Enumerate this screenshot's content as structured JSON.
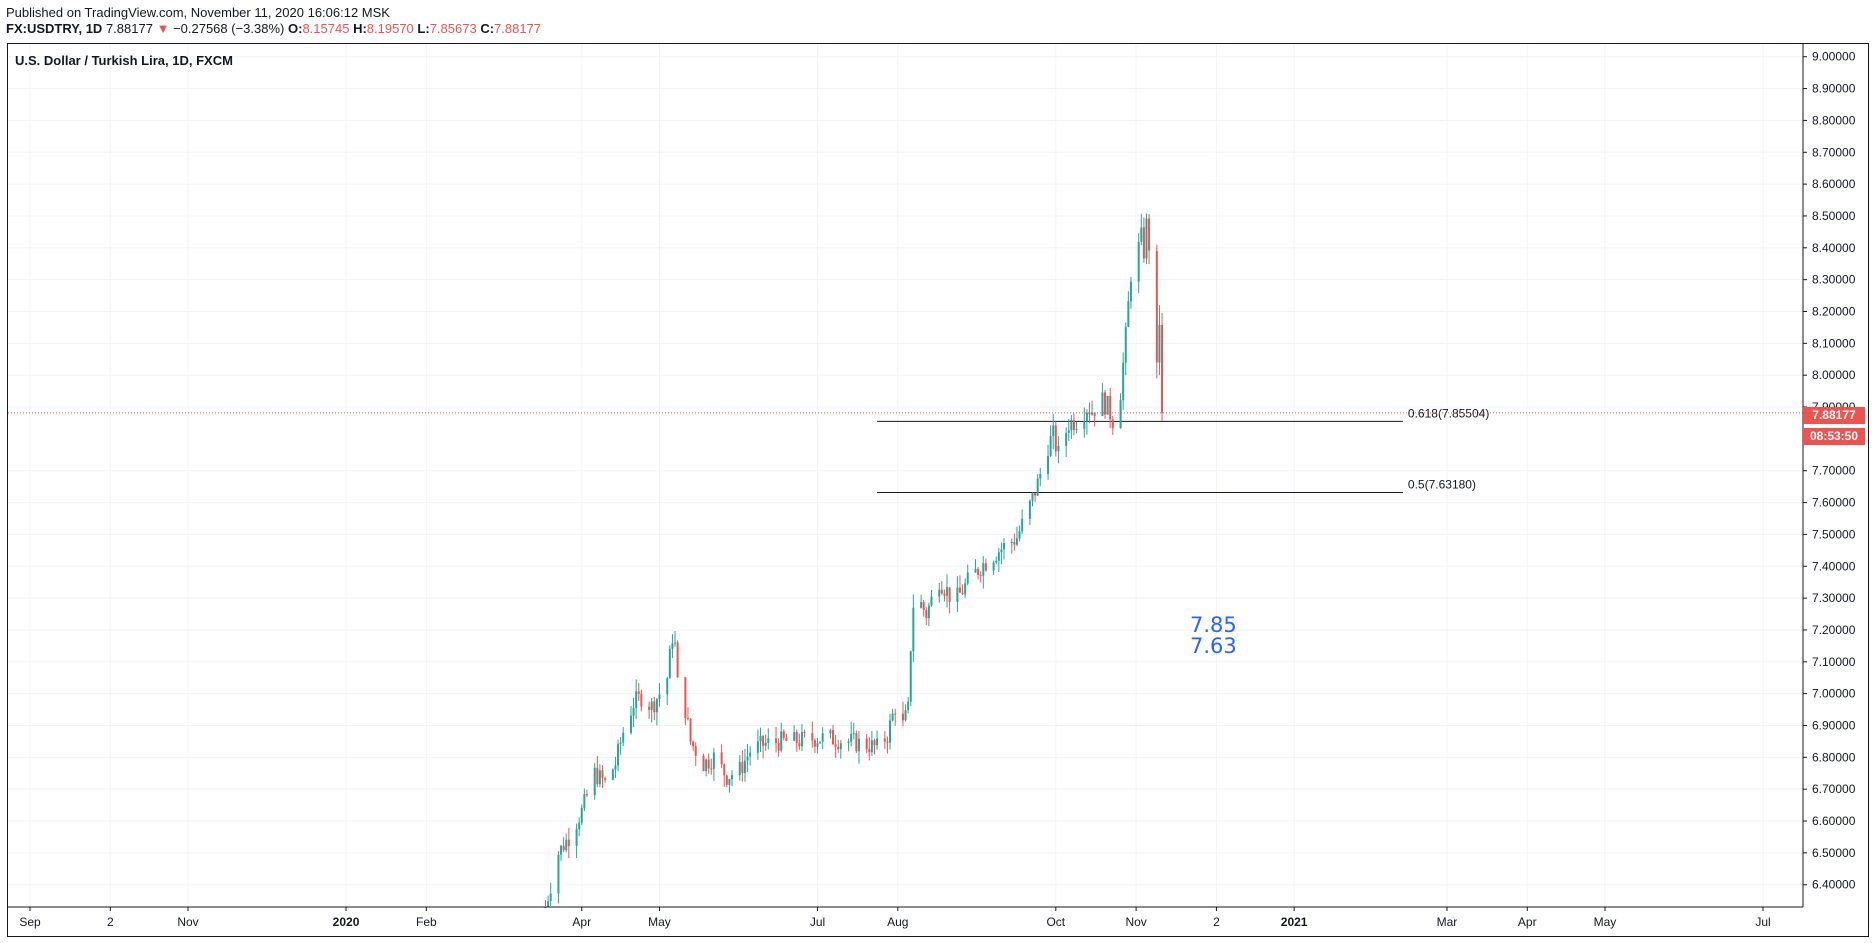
{
  "header": {
    "published": "Published on TradingView.com, November 11, 2020 16:06:12 MSK",
    "symbol": "FX:USDTRY, 1D",
    "last": "7.88177",
    "change_arrow": "▼",
    "change": "−0.27568 (−3.38%)",
    "o_label": "O:",
    "o_value": "8.15745",
    "h_label": "H:",
    "h_value": "8.19570",
    "l_label": "L:",
    "l_value": "7.85673",
    "c_label": "C:",
    "c_value": "7.88177"
  },
  "chart_title": "U.S. Dollar / Turkish Lira, 1D, FXCM",
  "price_tags": {
    "last_price": "7.88177",
    "countdown": "08:53:50"
  },
  "note_lines": [
    "7.85",
    "7.63"
  ],
  "colors": {
    "up": "#26a69a",
    "down": "#ef5350",
    "note": "#2962ff",
    "grid": "#f0f3fa"
  },
  "chart_data": {
    "type": "candlestick",
    "title": "U.S. Dollar / Turkish Lira, 1D, FXCM",
    "ylim": [
      6.33,
      9.04
    ],
    "y_ticks": [
      "9.00000",
      "8.90000",
      "8.80000",
      "8.70000",
      "8.60000",
      "8.50000",
      "8.40000",
      "8.30000",
      "8.20000",
      "8.10000",
      "8.00000",
      "7.90000",
      "7.70000",
      "7.60000",
      "7.50000",
      "7.40000",
      "7.30000",
      "7.20000",
      "7.10000",
      "7.00000",
      "6.90000",
      "6.80000",
      "6.70000",
      "6.60000",
      "6.50000",
      "6.40000"
    ],
    "x_ticks": [
      {
        "label": "Sep",
        "date": "2019-09-01",
        "bold": false
      },
      {
        "label": "2",
        "date": "2019-10-02",
        "bold": false
      },
      {
        "label": "Nov",
        "date": "2019-11-01",
        "bold": false
      },
      {
        "label": "2020",
        "date": "2020-01-01",
        "bold": true
      },
      {
        "label": "Feb",
        "date": "2020-02-01",
        "bold": false
      },
      {
        "label": "Apr",
        "date": "2020-04-01",
        "bold": false
      },
      {
        "label": "May",
        "date": "2020-05-01",
        "bold": false
      },
      {
        "label": "Jul",
        "date": "2020-07-01",
        "bold": false
      },
      {
        "label": "Aug",
        "date": "2020-08-01",
        "bold": false
      },
      {
        "label": "Oct",
        "date": "2020-10-01",
        "bold": false
      },
      {
        "label": "Nov",
        "date": "2020-11-01",
        "bold": false
      },
      {
        "label": "2",
        "date": "2020-12-02",
        "bold": false
      },
      {
        "label": "2021",
        "date": "2021-01-01",
        "bold": true
      },
      {
        "label": "Mar",
        "date": "2021-03-01",
        "bold": false
      },
      {
        "label": "Apr",
        "date": "2021-04-01",
        "bold": false
      },
      {
        "label": "May",
        "date": "2021-05-01",
        "bold": false
      },
      {
        "label": "Jul",
        "date": "2021-07-01",
        "bold": false
      }
    ],
    "fib_levels": [
      {
        "label": "0.618(7.85504)",
        "value": 7.85504,
        "from": "2020-07-24",
        "to": "2021-02-12"
      },
      {
        "label": "0.5(7.63180)",
        "value": 7.6318,
        "from": "2020-07-24",
        "to": "2021-02-12"
      }
    ],
    "last_price": 7.88177,
    "anchors": [
      [
        "2020-03-18",
        6.33
      ],
      [
        "2020-03-23",
        6.5
      ],
      [
        "2020-03-27",
        6.55
      ],
      [
        "2020-04-01",
        6.63
      ],
      [
        "2020-04-06",
        6.75
      ],
      [
        "2020-04-10",
        6.72
      ],
      [
        "2020-04-14",
        6.78
      ],
      [
        "2020-04-17",
        6.88
      ],
      [
        "2020-04-21",
        6.97
      ],
      [
        "2020-04-24",
        6.99
      ],
      [
        "2020-04-28",
        6.96
      ],
      [
        "2020-05-01",
        7.0
      ],
      [
        "2020-05-04",
        7.05
      ],
      [
        "2020-05-06",
        7.18
      ],
      [
        "2020-05-07",
        7.15
      ],
      [
        "2020-05-08",
        7.03
      ],
      [
        "2020-05-11",
        6.95
      ],
      [
        "2020-05-13",
        6.85
      ],
      [
        "2020-05-18",
        6.78
      ],
      [
        "2020-05-22",
        6.8
      ],
      [
        "2020-05-27",
        6.74
      ],
      [
        "2020-06-01",
        6.76
      ],
      [
        "2020-06-05",
        6.82
      ],
      [
        "2020-06-10",
        6.84
      ],
      [
        "2020-06-16",
        6.85
      ],
      [
        "2020-06-22",
        6.85
      ],
      [
        "2020-06-30",
        6.86
      ],
      [
        "2020-07-06",
        6.86
      ],
      [
        "2020-07-13",
        6.85
      ],
      [
        "2020-07-20",
        6.84
      ],
      [
        "2020-07-24",
        6.83
      ],
      [
        "2020-07-28",
        6.87
      ],
      [
        "2020-07-31",
        6.96
      ],
      [
        "2020-08-03",
        6.9
      ],
      [
        "2020-08-05",
        6.95
      ],
      [
        "2020-08-06",
        7.15
      ],
      [
        "2020-08-07",
        7.28
      ],
      [
        "2020-08-10",
        7.28
      ],
      [
        "2020-08-12",
        7.25
      ],
      [
        "2020-08-17",
        7.36
      ],
      [
        "2020-08-21",
        7.31
      ],
      [
        "2020-08-24",
        7.3
      ],
      [
        "2020-08-28",
        7.35
      ],
      [
        "2020-09-02",
        7.4
      ],
      [
        "2020-09-09",
        7.45
      ],
      [
        "2020-09-16",
        7.49
      ],
      [
        "2020-09-21",
        7.59
      ],
      [
        "2020-09-24",
        7.66
      ],
      [
        "2020-09-28",
        7.78
      ],
      [
        "2020-09-30",
        7.81
      ],
      [
        "2020-10-02",
        7.75
      ],
      [
        "2020-10-06",
        7.85
      ],
      [
        "2020-10-09",
        7.86
      ],
      [
        "2020-10-13",
        7.9
      ],
      [
        "2020-10-15",
        7.89
      ],
      [
        "2020-10-19",
        7.92
      ],
      [
        "2020-10-21",
        7.9
      ],
      [
        "2020-10-23",
        7.86
      ],
      [
        "2020-10-26",
        7.95
      ],
      [
        "2020-10-28",
        8.12
      ],
      [
        "2020-10-30",
        8.32
      ],
      [
        "2020-11-02",
        8.4
      ],
      [
        "2020-11-03",
        8.43
      ],
      [
        "2020-11-04",
        8.39
      ],
      [
        "2020-11-05",
        8.47
      ],
      [
        "2020-11-06",
        8.41
      ]
    ],
    "last_candles": [
      {
        "date": "2020-11-09",
        "open": 8.39,
        "high": 8.41,
        "low": 7.99,
        "close": 8.04
      },
      {
        "date": "2020-11-10",
        "open": 8.04,
        "high": 8.22,
        "low": 8.0,
        "close": 8.15745
      },
      {
        "date": "2020-11-11",
        "open": 8.15745,
        "high": 8.1957,
        "low": 7.85673,
        "close": 7.88177
      }
    ]
  }
}
